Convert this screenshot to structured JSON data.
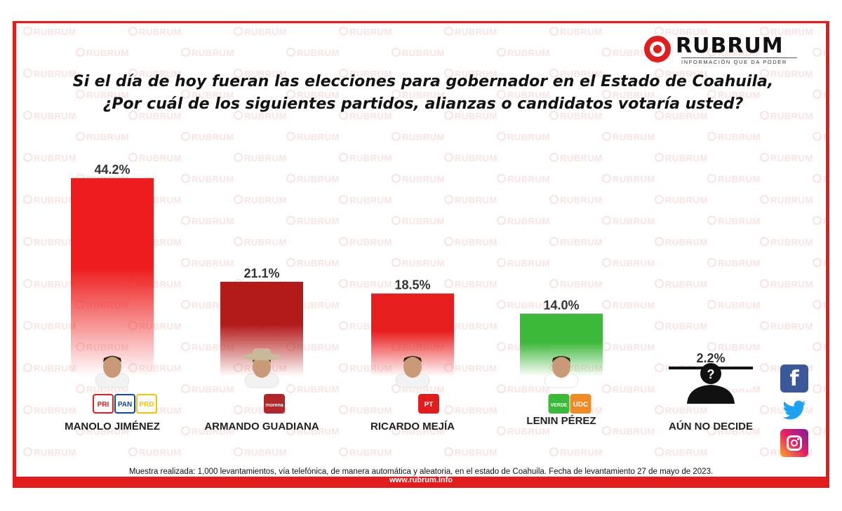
{
  "brand": {
    "name": "RUBRUM",
    "tagline": "INFORMACIÓN QUE DA PODER",
    "website": "www.rubrum.info",
    "watermark_text": "RUBRUM",
    "accent_color": "#e21d1d"
  },
  "title_line1": "Si el día de hoy fueran las elecciones para gobernador en el Estado de Coahuila,",
  "title_line2": "¿Por cuál de los siguientes partidos, alianzas o candidatos votaría usted?",
  "footnote": "Muestra realizada: 1,000 levantamientos, vía telefónica, de manera automática y aleatoria, en el estado de Coahuila. Fecha de levantamiento 27 de mayo de 2023.",
  "social_icons": [
    "facebook-icon",
    "twitter-icon",
    "instagram-icon"
  ],
  "chart_data": {
    "type": "bar",
    "title": "",
    "xlabel": "",
    "ylabel": "",
    "ylim": [
      0,
      50
    ],
    "grid": false,
    "categories": [
      "MANOLO JIMÉNEZ",
      "ARMANDO GUADIANA",
      "RICARDO MEJÍA",
      "LENIN PÉREZ",
      "AÚN NO DECIDE"
    ],
    "values": [
      44.2,
      21.1,
      18.5,
      14.0,
      2.2
    ],
    "value_labels": [
      "44.2%",
      "21.1%",
      "18.5%",
      "14.0%",
      "2.2%"
    ],
    "bar_colors": [
      "#ee1c1c",
      "#b31b1b",
      "#e81e1e",
      "#3cb83a",
      "#111111"
    ],
    "party_logos": [
      [
        {
          "text": "PRI",
          "color": "#e21d1d"
        },
        {
          "text": "PAN",
          "color": "#0a4aa6"
        },
        {
          "text": "PRD",
          "color": "#f5c400"
        }
      ],
      [
        {
          "text": "morena",
          "color": "#b0272c"
        }
      ],
      [
        {
          "text": "PT",
          "color": "#e21d1d"
        }
      ],
      [
        {
          "text": "VERDE",
          "color": "#3cb83a"
        },
        {
          "text": "UDC",
          "color": "#f08a24"
        }
      ],
      []
    ]
  }
}
